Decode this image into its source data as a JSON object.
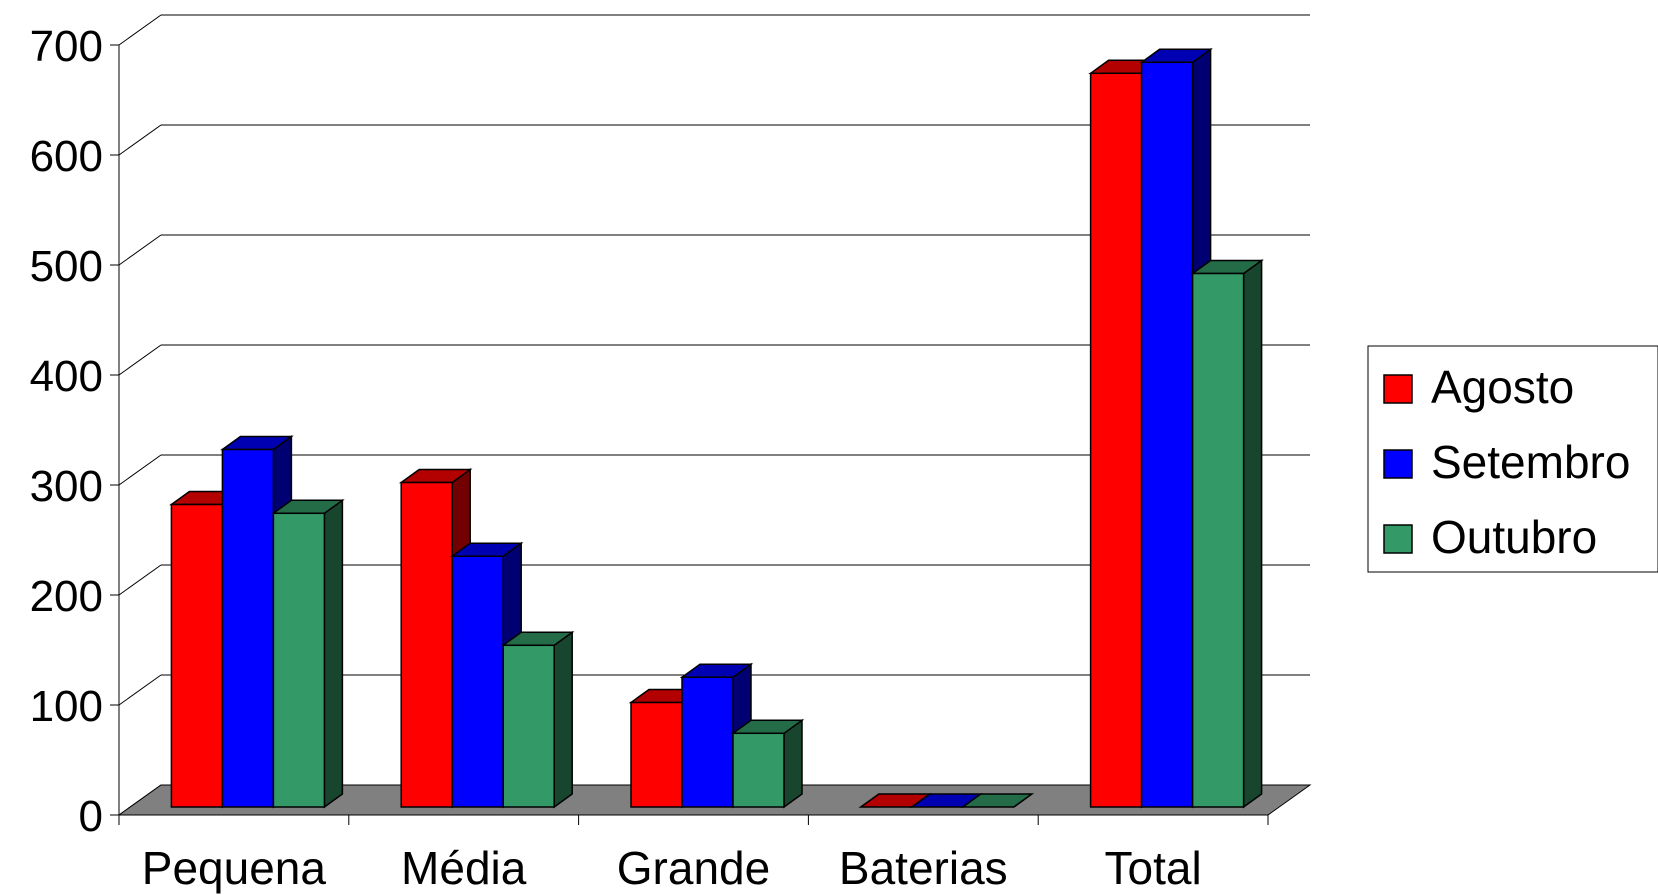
{
  "chart_data": {
    "type": "bar",
    "style": "3d-clustered-column",
    "title": "",
    "xlabel": "",
    "ylabel": "",
    "categories": [
      "Pequena",
      "Média",
      "Grande",
      "Baterias",
      "Total"
    ],
    "y_ticks": [
      "0",
      "100",
      "200",
      "300",
      "400",
      "500",
      "600",
      "700"
    ],
    "ylim": [
      0,
      700
    ],
    "grid": true,
    "legend_position": "right",
    "series": [
      {
        "name": "Agosto",
        "color": "#ff0000",
        "values": [
          275,
          295,
          95,
          0,
          667
        ]
      },
      {
        "name": "Setembro",
        "color": "#0000ff",
        "values": [
          325,
          228,
          118,
          0,
          677
        ]
      },
      {
        "name": "Outubro",
        "color": "#339966",
        "values": [
          267,
          147,
          67,
          0,
          485
        ]
      }
    ],
    "floor_color": "#808080"
  }
}
